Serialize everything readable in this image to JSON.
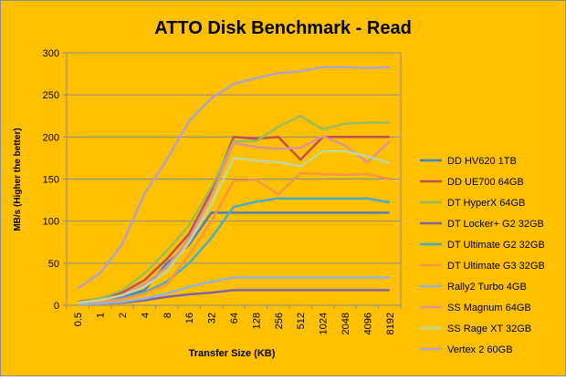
{
  "chart_data": {
    "type": "line",
    "title": "ATTO Disk Benchmark - Read",
    "xlabel": "Transfer Size (KB)",
    "ylabel": "MB/s (Higher the better)",
    "categories": [
      "0.5",
      "1",
      "2",
      "4",
      "8",
      "16",
      "32",
      "64",
      "128",
      "256",
      "512",
      "1024",
      "2048",
      "4096",
      "8192"
    ],
    "ylim": [
      0,
      300
    ],
    "yticks": [
      0,
      50,
      100,
      150,
      200,
      250,
      300
    ],
    "grid": true,
    "legend": "right",
    "colors": {
      "background": "#FFC000",
      "plot_area": "#FFC000",
      "grid": "#8C8C8C"
    },
    "series": [
      {
        "name": "DD HV620  1TB",
        "color": "#4F81BD",
        "values": [
          2,
          4,
          10,
          18,
          50,
          72,
          110,
          110,
          110,
          110,
          110,
          110,
          110,
          110,
          110
        ]
      },
      {
        "name": "DD UE700  64GB",
        "color": "#C0504D",
        "values": [
          4,
          8,
          15,
          30,
          55,
          85,
          135,
          200,
          198,
          200,
          173,
          200,
          200,
          200,
          200
        ]
      },
      {
        "name": "DT HyperX 64GB",
        "color": "#9BBB59",
        "values": [
          3,
          8,
          18,
          38,
          65,
          95,
          140,
          195,
          195,
          212,
          225,
          209,
          216,
          217,
          217
        ]
      },
      {
        "name": "DT Locker+ G2 32GB",
        "color": "#8064A2",
        "values": [
          1,
          2,
          3,
          6,
          10,
          13,
          15,
          18,
          18,
          18,
          18,
          18,
          18,
          18,
          18
        ]
      },
      {
        "name": "DT Ultimate  G2 32GB",
        "color": "#4BACC6",
        "values": [
          2,
          4,
          8,
          15,
          28,
          50,
          80,
          117,
          123,
          127,
          127,
          127,
          127,
          127,
          122
        ]
      },
      {
        "name": "DT Ultimate  G3 32GB",
        "color": "#F79646",
        "values": [
          2,
          4,
          7,
          14,
          25,
          60,
          100,
          148,
          149,
          132,
          157,
          156,
          155,
          156,
          150
        ]
      },
      {
        "name": "Rally2 Turbo 4GB",
        "color": "#95B3D7",
        "values": [
          1,
          2,
          4,
          8,
          14,
          22,
          28,
          33,
          33,
          33,
          33,
          33,
          33,
          33,
          33
        ]
      },
      {
        "name": "SS Magnum  64GB",
        "color": "#D99694",
        "values": [
          3,
          6,
          12,
          25,
          45,
          80,
          130,
          193,
          188,
          186,
          187,
          201,
          190,
          170,
          195
        ]
      },
      {
        "name": "SS Rage  XT 32GB",
        "color": "#C3D69B",
        "values": [
          3,
          6,
          12,
          22,
          40,
          75,
          120,
          175,
          172,
          170,
          165,
          183,
          183,
          177,
          169
        ]
      },
      {
        "name": "Vertex 2 60GB",
        "color": "#B3A2C7",
        "values": [
          20,
          38,
          73,
          133,
          173,
          219,
          246,
          263,
          270,
          276,
          278,
          283,
          283,
          282,
          283
        ]
      }
    ]
  }
}
